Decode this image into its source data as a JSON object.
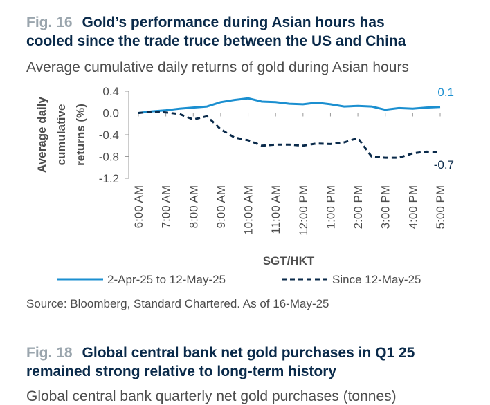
{
  "fig16": {
    "number": "Fig. 16",
    "title_line1": "Gold’s performance during Asian hours has",
    "title_line2": "cooled since the trade truce between the US and China",
    "subtitle": "Average cumulative daily returns of gold during Asian hours",
    "source": "Source: Bloomberg, Standard Chartered. As of 16-May-25"
  },
  "fig18": {
    "number": "Fig. 18",
    "title_line1": "Global central bank net gold purchases in Q1 25",
    "title_line2": "remained strong relative to long-term history",
    "subtitle_partial": "Global central bank quarterly net gold purchases (tonnes)"
  },
  "chart_data": {
    "type": "line",
    "xlabel": "SGT/HKT",
    "ylabel": "Average daily cumulative returns (%)",
    "ylabel_lines": [
      "Average daily",
      "cumulative",
      "returns (%)"
    ],
    "ylim": [
      -1.2,
      0.4
    ],
    "yticks": [
      "0.4",
      "0.0",
      "-0.4",
      "-0.8",
      "-1.2"
    ],
    "ytick_values": [
      0.4,
      0.0,
      -0.4,
      -0.8,
      -1.2
    ],
    "xticks": [
      "6:00 AM",
      "7:00 AM",
      "8:00 AM",
      "9:00 AM",
      "10:00 AM",
      "11:00 AM",
      "12:00 PM",
      "1:00 PM",
      "2:00 PM",
      "3:00 PM",
      "4:00 PM",
      "5:00 PM"
    ],
    "x": [
      6,
      6.5,
      7,
      7.5,
      8,
      8.5,
      9,
      9.5,
      10,
      10.5,
      11,
      11.5,
      12,
      12.5,
      13,
      13.5,
      14,
      14.5,
      15,
      15.5,
      16,
      16.5,
      17
    ],
    "legend_position": "bottom",
    "grid": false,
    "series": [
      {
        "name": "2-Apr-25 to 12-May-25",
        "style": "solid",
        "color": "#1b8fd0",
        "values": [
          0.0,
          0.03,
          0.05,
          0.08,
          0.1,
          0.12,
          0.2,
          0.24,
          0.27,
          0.21,
          0.2,
          0.17,
          0.16,
          0.19,
          0.16,
          0.12,
          0.13,
          0.12,
          0.06,
          0.09,
          0.08,
          0.1,
          0.11
        ],
        "end_label": "0.1"
      },
      {
        "name": "Since 12-May-25",
        "style": "dashed",
        "color": "#0a2a4a",
        "values": [
          0.0,
          0.02,
          0.01,
          -0.02,
          -0.12,
          -0.06,
          -0.3,
          -0.45,
          -0.5,
          -0.6,
          -0.58,
          -0.58,
          -0.6,
          -0.56,
          -0.57,
          -0.54,
          -0.46,
          -0.8,
          -0.82,
          -0.82,
          -0.74,
          -0.71,
          -0.72
        ],
        "end_label": "-0.7"
      }
    ]
  }
}
